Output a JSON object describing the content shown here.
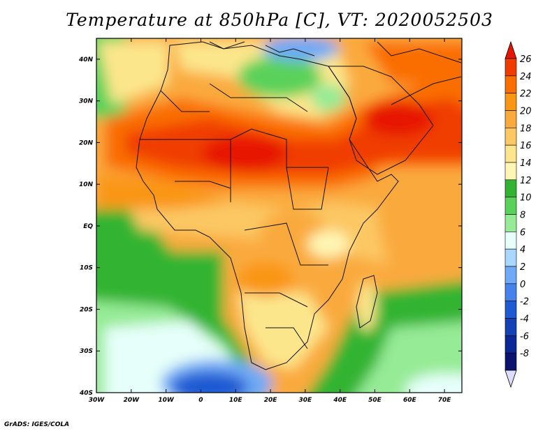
{
  "title": "Temperature at 850hPa [C], VT: 2020052503",
  "credit": "GrADS: IGES/COLA",
  "map": {
    "region": "Africa and Arabian Peninsula",
    "lat_range": [
      -40,
      45
    ],
    "lon_range": [
      -30,
      75
    ],
    "lat_ticks": [
      {
        "value": 40,
        "label": "40N"
      },
      {
        "value": 30,
        "label": "30N"
      },
      {
        "value": 20,
        "label": "20N"
      },
      {
        "value": 10,
        "label": "10N"
      },
      {
        "value": 0,
        "label": "EQ"
      },
      {
        "value": -10,
        "label": "10S"
      },
      {
        "value": -20,
        "label": "20S"
      },
      {
        "value": -30,
        "label": "30S"
      },
      {
        "value": -40,
        "label": "40S"
      }
    ],
    "lon_ticks": [
      {
        "value": -30,
        "label": "30W"
      },
      {
        "value": -20,
        "label": "20W"
      },
      {
        "value": -10,
        "label": "10W"
      },
      {
        "value": 0,
        "label": "0"
      },
      {
        "value": 10,
        "label": "10E"
      },
      {
        "value": 20,
        "label": "20E"
      },
      {
        "value": 30,
        "label": "30E"
      },
      {
        "value": 40,
        "label": "40E"
      },
      {
        "value": 50,
        "label": "50E"
      },
      {
        "value": 60,
        "label": "60E"
      },
      {
        "value": 70,
        "label": "70E"
      }
    ]
  },
  "colorbar": {
    "levels": [
      "26",
      "24",
      "22",
      "20",
      "18",
      "16",
      "14",
      "12",
      "10",
      "8",
      "6",
      "4",
      "2",
      "0",
      "-2",
      "-4",
      "-6",
      "-8"
    ],
    "colors": [
      "#f03c00",
      "#fa6e00",
      "#fa9614",
      "#faaa3c",
      "#fcc864",
      "#fce68c",
      "#fff5b4",
      "#32b432",
      "#5ad25a",
      "#96eb96",
      "#e6fffa",
      "#aad7ff",
      "#6eaaf5",
      "#4682eb",
      "#1e5ad2",
      "#1441b4",
      "#0a2896",
      "#0a146e"
    ],
    "top_color": "#e61400",
    "bottom_color": "#dcdcff"
  }
}
